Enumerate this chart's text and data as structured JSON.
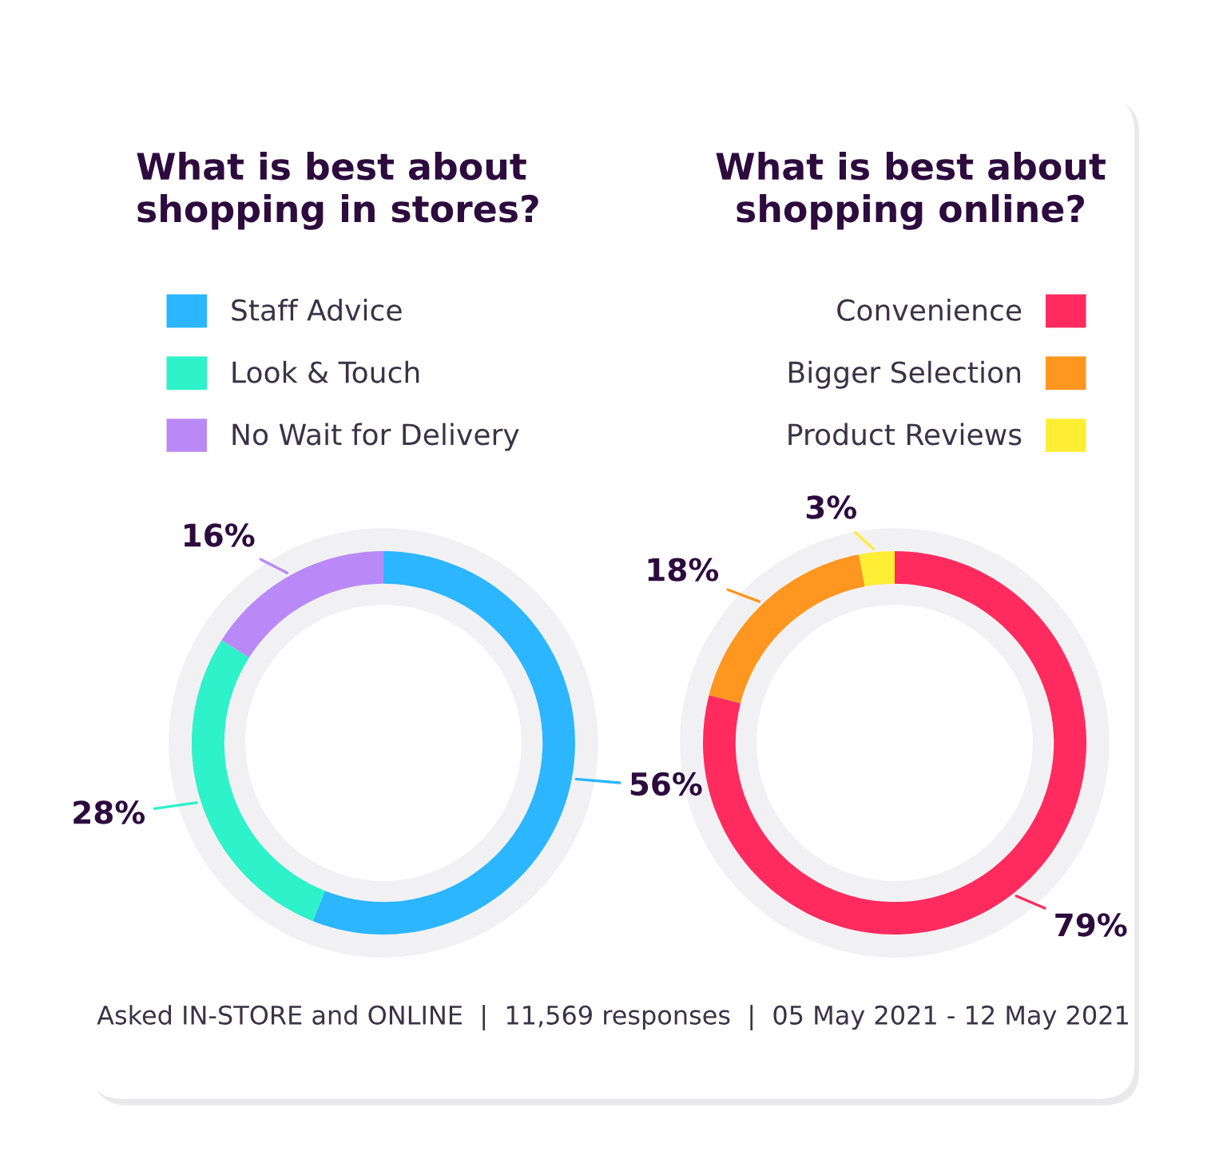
{
  "chart_data": [
    {
      "type": "donut",
      "title": "What is best about\nshopping in stores?",
      "categories": [
        "Staff Advice",
        "Look & Touch",
        "No Wait for Delivery"
      ],
      "values": [
        56,
        28,
        16
      ],
      "colors": [
        "#2bb6ff",
        "#2ef2c9",
        "#b98af7"
      ],
      "value_labels": [
        "56%",
        "28%",
        "16%"
      ],
      "legend": "top left",
      "annotations": [
        "Asked IN-STORE and ONLINE  |  11,569 responses  |  05 May 2021 - 12 May 2021"
      ]
    },
    {
      "type": "donut",
      "title": "What is best about\nshopping online?",
      "categories": [
        "Convenience",
        "Bigger Selection",
        "Product Reviews"
      ],
      "values": [
        79,
        18,
        3
      ],
      "colors": [
        "#ff2b5e",
        "#ff961f",
        "#ffee33"
      ],
      "value_labels": [
        "79%",
        "18%",
        "3%"
      ],
      "legend": "top right"
    }
  ]
}
